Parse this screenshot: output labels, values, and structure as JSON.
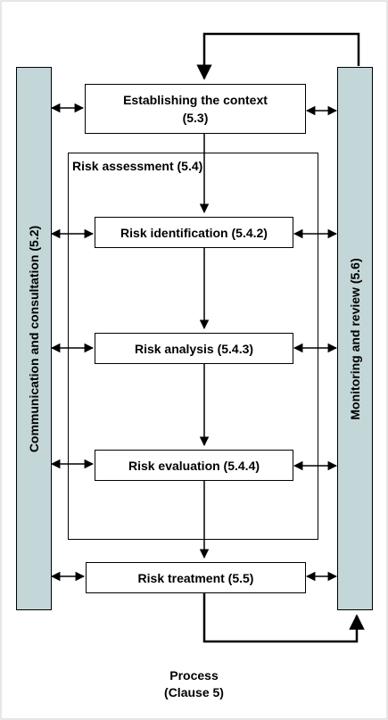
{
  "left_bar": {
    "label": "Communication and consultation (5.2)"
  },
  "right_bar": {
    "label": "Monitoring and review (5.6)"
  },
  "boxes": {
    "context": {
      "line1": "Establishing the context",
      "line2": "(5.3)"
    },
    "identification": "Risk identification (5.4.2)",
    "analysis": "Risk analysis (5.4.3)",
    "evaluation": "Risk evaluation (5.4.4)",
    "treatment": "Risk treatment (5.5)"
  },
  "assessment_frame": {
    "title": "Risk  assessment (5.4)"
  },
  "caption": {
    "line1": "Process",
    "line2": "(Clause 5)"
  }
}
